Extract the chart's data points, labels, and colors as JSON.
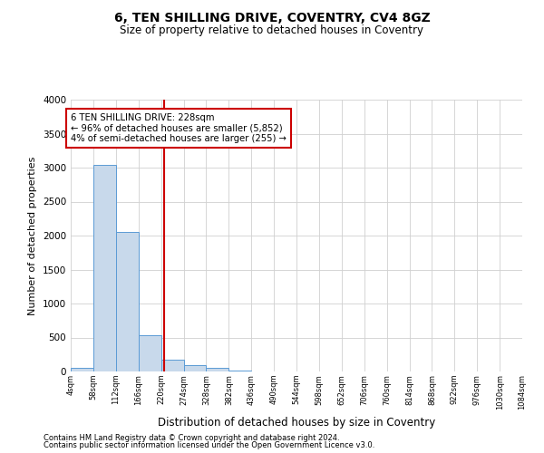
{
  "title": "6, TEN SHILLING DRIVE, COVENTRY, CV4 8GZ",
  "subtitle": "Size of property relative to detached houses in Coventry",
  "xlabel": "Distribution of detached houses by size in Coventry",
  "ylabel": "Number of detached properties",
  "property_size": 228,
  "property_label": "6 TEN SHILLING DRIVE: 228sqm",
  "pct_smaller": 96,
  "n_smaller": 5852,
  "pct_larger": 4,
  "n_larger": 255,
  "footnote1": "Contains HM Land Registry data © Crown copyright and database right 2024.",
  "footnote2": "Contains public sector information licensed under the Open Government Licence v3.0.",
  "bar_color": "#c8d9eb",
  "bar_edge_color": "#5b9bd5",
  "vline_color": "#cc0000",
  "annotation_box_color": "#cc0000",
  "background_color": "#ffffff",
  "grid_color": "#d0d0d0",
  "bin_edges": [
    4,
    58,
    112,
    166,
    220,
    274,
    328,
    382,
    436,
    490,
    544,
    598,
    652,
    706,
    760,
    814,
    868,
    922,
    976,
    1030,
    1084
  ],
  "bin_counts": [
    60,
    3040,
    2060,
    530,
    170,
    90,
    50,
    10,
    0,
    0,
    0,
    0,
    0,
    0,
    0,
    0,
    0,
    0,
    0,
    0
  ],
  "ylim": [
    0,
    4000
  ],
  "yticks": [
    0,
    500,
    1000,
    1500,
    2000,
    2500,
    3000,
    3500,
    4000
  ]
}
